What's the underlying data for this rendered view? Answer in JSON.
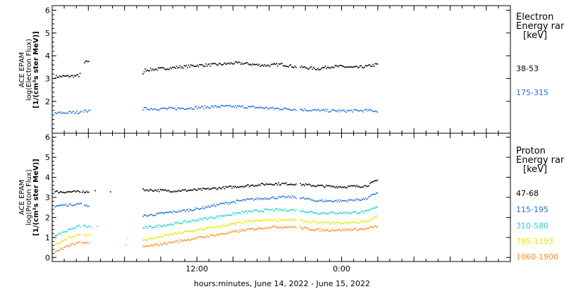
{
  "xlabel": "hours:minutes, June 14, 2022 - June 15, 2022",
  "x_ticks": [
    {
      "label": "12:00",
      "hour": 12
    },
    {
      "label": "0:00",
      "hour": 24
    }
  ],
  "chart_data": [
    {
      "type": "scatter",
      "panel": "electron",
      "ylabel_lines": [
        "ACE EPAM",
        "log(Electron Flux)",
        "[1/(cm²s ster MeV)]"
      ],
      "ylim": [
        0.6,
        6.2
      ],
      "y_ticks": [
        2,
        3,
        4,
        5,
        6
      ],
      "xlim_hours": [
        0,
        38
      ],
      "legend_title": [
        "Electron",
        "Energy ran",
        "[keV]"
      ],
      "series": [
        {
          "name": "38-53",
          "color": "#000000",
          "profile": [
            [
              0.2,
              3.1
            ],
            [
              2.2,
              3.15
            ],
            [
              2.6,
              3.7
            ],
            [
              3.0,
              3.8
            ],
            [
              7.4,
              3.0
            ],
            [
              7.6,
              3.4
            ],
            [
              9,
              3.45
            ],
            [
              10,
              3.5
            ],
            [
              11,
              3.55
            ],
            [
              12,
              3.6
            ],
            [
              13,
              3.62
            ],
            [
              14,
              3.65
            ],
            [
              15,
              3.7
            ],
            [
              16,
              3.68
            ],
            [
              17,
              3.62
            ],
            [
              18,
              3.6
            ],
            [
              19,
              3.65
            ],
            [
              20,
              3.55
            ],
            [
              21,
              3.5
            ],
            [
              22,
              3.45
            ],
            [
              23,
              3.55
            ],
            [
              24,
              3.55
            ],
            [
              25,
              3.5
            ],
            [
              26,
              3.55
            ],
            [
              27,
              3.65
            ]
          ]
        },
        {
          "name": "175-315",
          "color": "#1a73d9",
          "profile": [
            [
              0.2,
              1.5
            ],
            [
              2.2,
              1.55
            ],
            [
              2.6,
              1.6
            ],
            [
              7.4,
              1.65
            ],
            [
              7.6,
              1.7
            ],
            [
              10,
              1.7
            ],
            [
              12,
              1.75
            ],
            [
              14,
              1.8
            ],
            [
              16,
              1.78
            ],
            [
              18,
              1.72
            ],
            [
              20,
              1.68
            ],
            [
              22,
              1.62
            ],
            [
              24,
              1.6
            ],
            [
              26,
              1.62
            ],
            [
              27,
              1.6
            ]
          ]
        }
      ]
    },
    {
      "type": "scatter",
      "panel": "proton",
      "ylabel_lines": [
        "ACE EPAM",
        "log(Proton Flux)",
        "[1/(cm²s ster MeV)]"
      ],
      "ylim": [
        -0.2,
        6.2
      ],
      "y_ticks": [
        0,
        1,
        2,
        3,
        4,
        5,
        6
      ],
      "xlim_hours": [
        0,
        38
      ],
      "legend_title": [
        "Proton",
        "Energy ran",
        "[keV]"
      ],
      "series": [
        {
          "name": "47-68",
          "color": "#000000",
          "profile": [
            [
              0.2,
              3.3
            ],
            [
              2.2,
              3.3
            ],
            [
              7.6,
              3.4
            ],
            [
              10,
              3.35
            ],
            [
              12,
              3.4
            ],
            [
              14,
              3.5
            ],
            [
              16,
              3.6
            ],
            [
              18,
              3.7
            ],
            [
              20,
              3.7
            ],
            [
              22,
              3.6
            ],
            [
              24,
              3.55
            ],
            [
              26,
              3.6
            ],
            [
              27,
              3.9
            ]
          ]
        },
        {
          "name": "115-195",
          "color": "#1a73d9",
          "profile": [
            [
              0.2,
              2.6
            ],
            [
              2.2,
              2.7
            ],
            [
              7.6,
              2.1
            ],
            [
              10,
              2.3
            ],
            [
              12,
              2.45
            ],
            [
              14,
              2.7
            ],
            [
              16,
              2.9
            ],
            [
              18,
              3.0
            ],
            [
              20,
              3.05
            ],
            [
              22,
              2.85
            ],
            [
              24,
              2.85
            ],
            [
              26,
              2.95
            ],
            [
              27,
              3.3
            ]
          ]
        },
        {
          "name": "310-580",
          "color": "#19d3d3",
          "profile": [
            [
              0.2,
              1.1
            ],
            [
              2.2,
              1.6
            ],
            [
              7.6,
              1.5
            ],
            [
              10,
              1.7
            ],
            [
              12,
              1.9
            ],
            [
              14,
              2.1
            ],
            [
              16,
              2.3
            ],
            [
              18,
              2.4
            ],
            [
              20,
              2.4
            ],
            [
              22,
              2.25
            ],
            [
              24,
              2.25
            ],
            [
              26,
              2.3
            ],
            [
              27,
              2.6
            ]
          ]
        },
        {
          "name": "795-1193",
          "color": "#e6e600",
          "profile": [
            [
              0.2,
              0.7
            ],
            [
              2.2,
              1.2
            ],
            [
              7.6,
              0.9
            ],
            [
              10,
              1.2
            ],
            [
              12,
              1.4
            ],
            [
              14,
              1.6
            ],
            [
              16,
              1.8
            ],
            [
              18,
              1.9
            ],
            [
              20,
              1.9
            ],
            [
              22,
              1.75
            ],
            [
              24,
              1.75
            ],
            [
              26,
              1.8
            ],
            [
              27,
              2.1
            ]
          ]
        },
        {
          "name": "1060-1900",
          "color": "#ff8c1a",
          "profile": [
            [
              0.2,
              0.35
            ],
            [
              2.2,
              0.8
            ],
            [
              7.6,
              0.55
            ],
            [
              10,
              0.8
            ],
            [
              12,
              1.0
            ],
            [
              14,
              1.2
            ],
            [
              16,
              1.4
            ],
            [
              18,
              1.55
            ],
            [
              20,
              1.55
            ],
            [
              22,
              1.4
            ],
            [
              24,
              1.4
            ],
            [
              26,
              1.45
            ],
            [
              27,
              1.6
            ]
          ]
        }
      ]
    }
  ]
}
